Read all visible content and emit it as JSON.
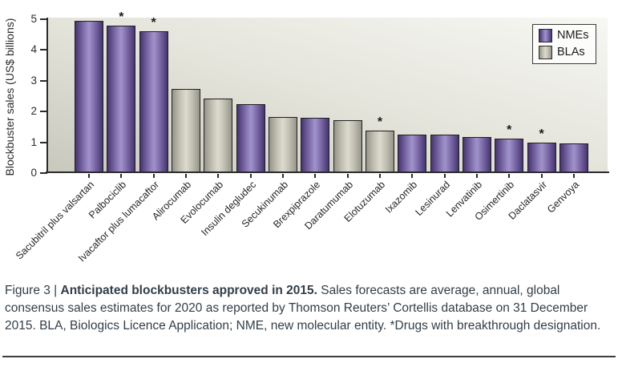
{
  "caption": {
    "figure_label": "Figure 3 | ",
    "title": "Anticipated blockbusters approved in 2015.",
    "body": " Sales forecasts are average, annual, global consensus sales estimates for 2020 as reported by Thomson Reuters’ Cortellis database on 31 December 2015. BLA, Biologics Licence Application; NME, new molecular entity. *Drugs with breakthrough designation."
  },
  "legend": {
    "items": [
      {
        "label": "NMEs",
        "type": "NME"
      },
      {
        "label": "BLAs",
        "type": "BLA"
      }
    ]
  },
  "chart_data": {
    "type": "bar",
    "title": "",
    "xlabel": "",
    "ylabel": "Blockbuster sales (US$ billions)",
    "ylim": [
      0,
      5
    ],
    "yticks": [
      0,
      1,
      2,
      3,
      4,
      5
    ],
    "grid": false,
    "legend_position": "top-right",
    "star_glyph": "*",
    "star_meaning": "Drugs with breakthrough designation",
    "categories": [
      "Sacubitril plus valsartan",
      "Palbociclib",
      "Ivacaftor plus lumacaftor",
      "Alirocumab",
      "Evolocumab",
      "Insulin degludec",
      "Secukinumab",
      "Brexpiprazole",
      "Daratumumab",
      "Elotuzumab",
      "Ixazomib",
      "Lesinurad",
      "Lenvatinib",
      "Osimertinib",
      "Daclatasvir",
      "Genvoya"
    ],
    "values": [
      4.95,
      4.8,
      4.62,
      2.73,
      2.41,
      2.24,
      1.83,
      1.8,
      1.72,
      1.37,
      1.26,
      1.24,
      1.16,
      1.13,
      0.99,
      0.97
    ],
    "series_type": [
      "NME",
      "NME",
      "NME",
      "BLA",
      "BLA",
      "NME",
      "BLA",
      "NME",
      "BLA",
      "BLA",
      "NME",
      "NME",
      "NME",
      "NME",
      "NME",
      "NME"
    ],
    "breakthrough": [
      false,
      true,
      true,
      false,
      false,
      false,
      false,
      false,
      false,
      true,
      false,
      false,
      false,
      true,
      true,
      false
    ]
  },
  "colors": {
    "nme_dark": "#463471",
    "nme_mid": "#7c6aa8",
    "nme_light": "#a093ca",
    "bla_dark": "#96948a",
    "bla_mid": "#c2c0b2",
    "bla_light": "#dddbcd",
    "axis": "#2b2b2b",
    "plot_bg_dark": "#c8c8bd",
    "plot_bg_mid": "#e4e4db",
    "plot_bg_light": "#f7f7f3",
    "caption_text": "#323e48"
  }
}
